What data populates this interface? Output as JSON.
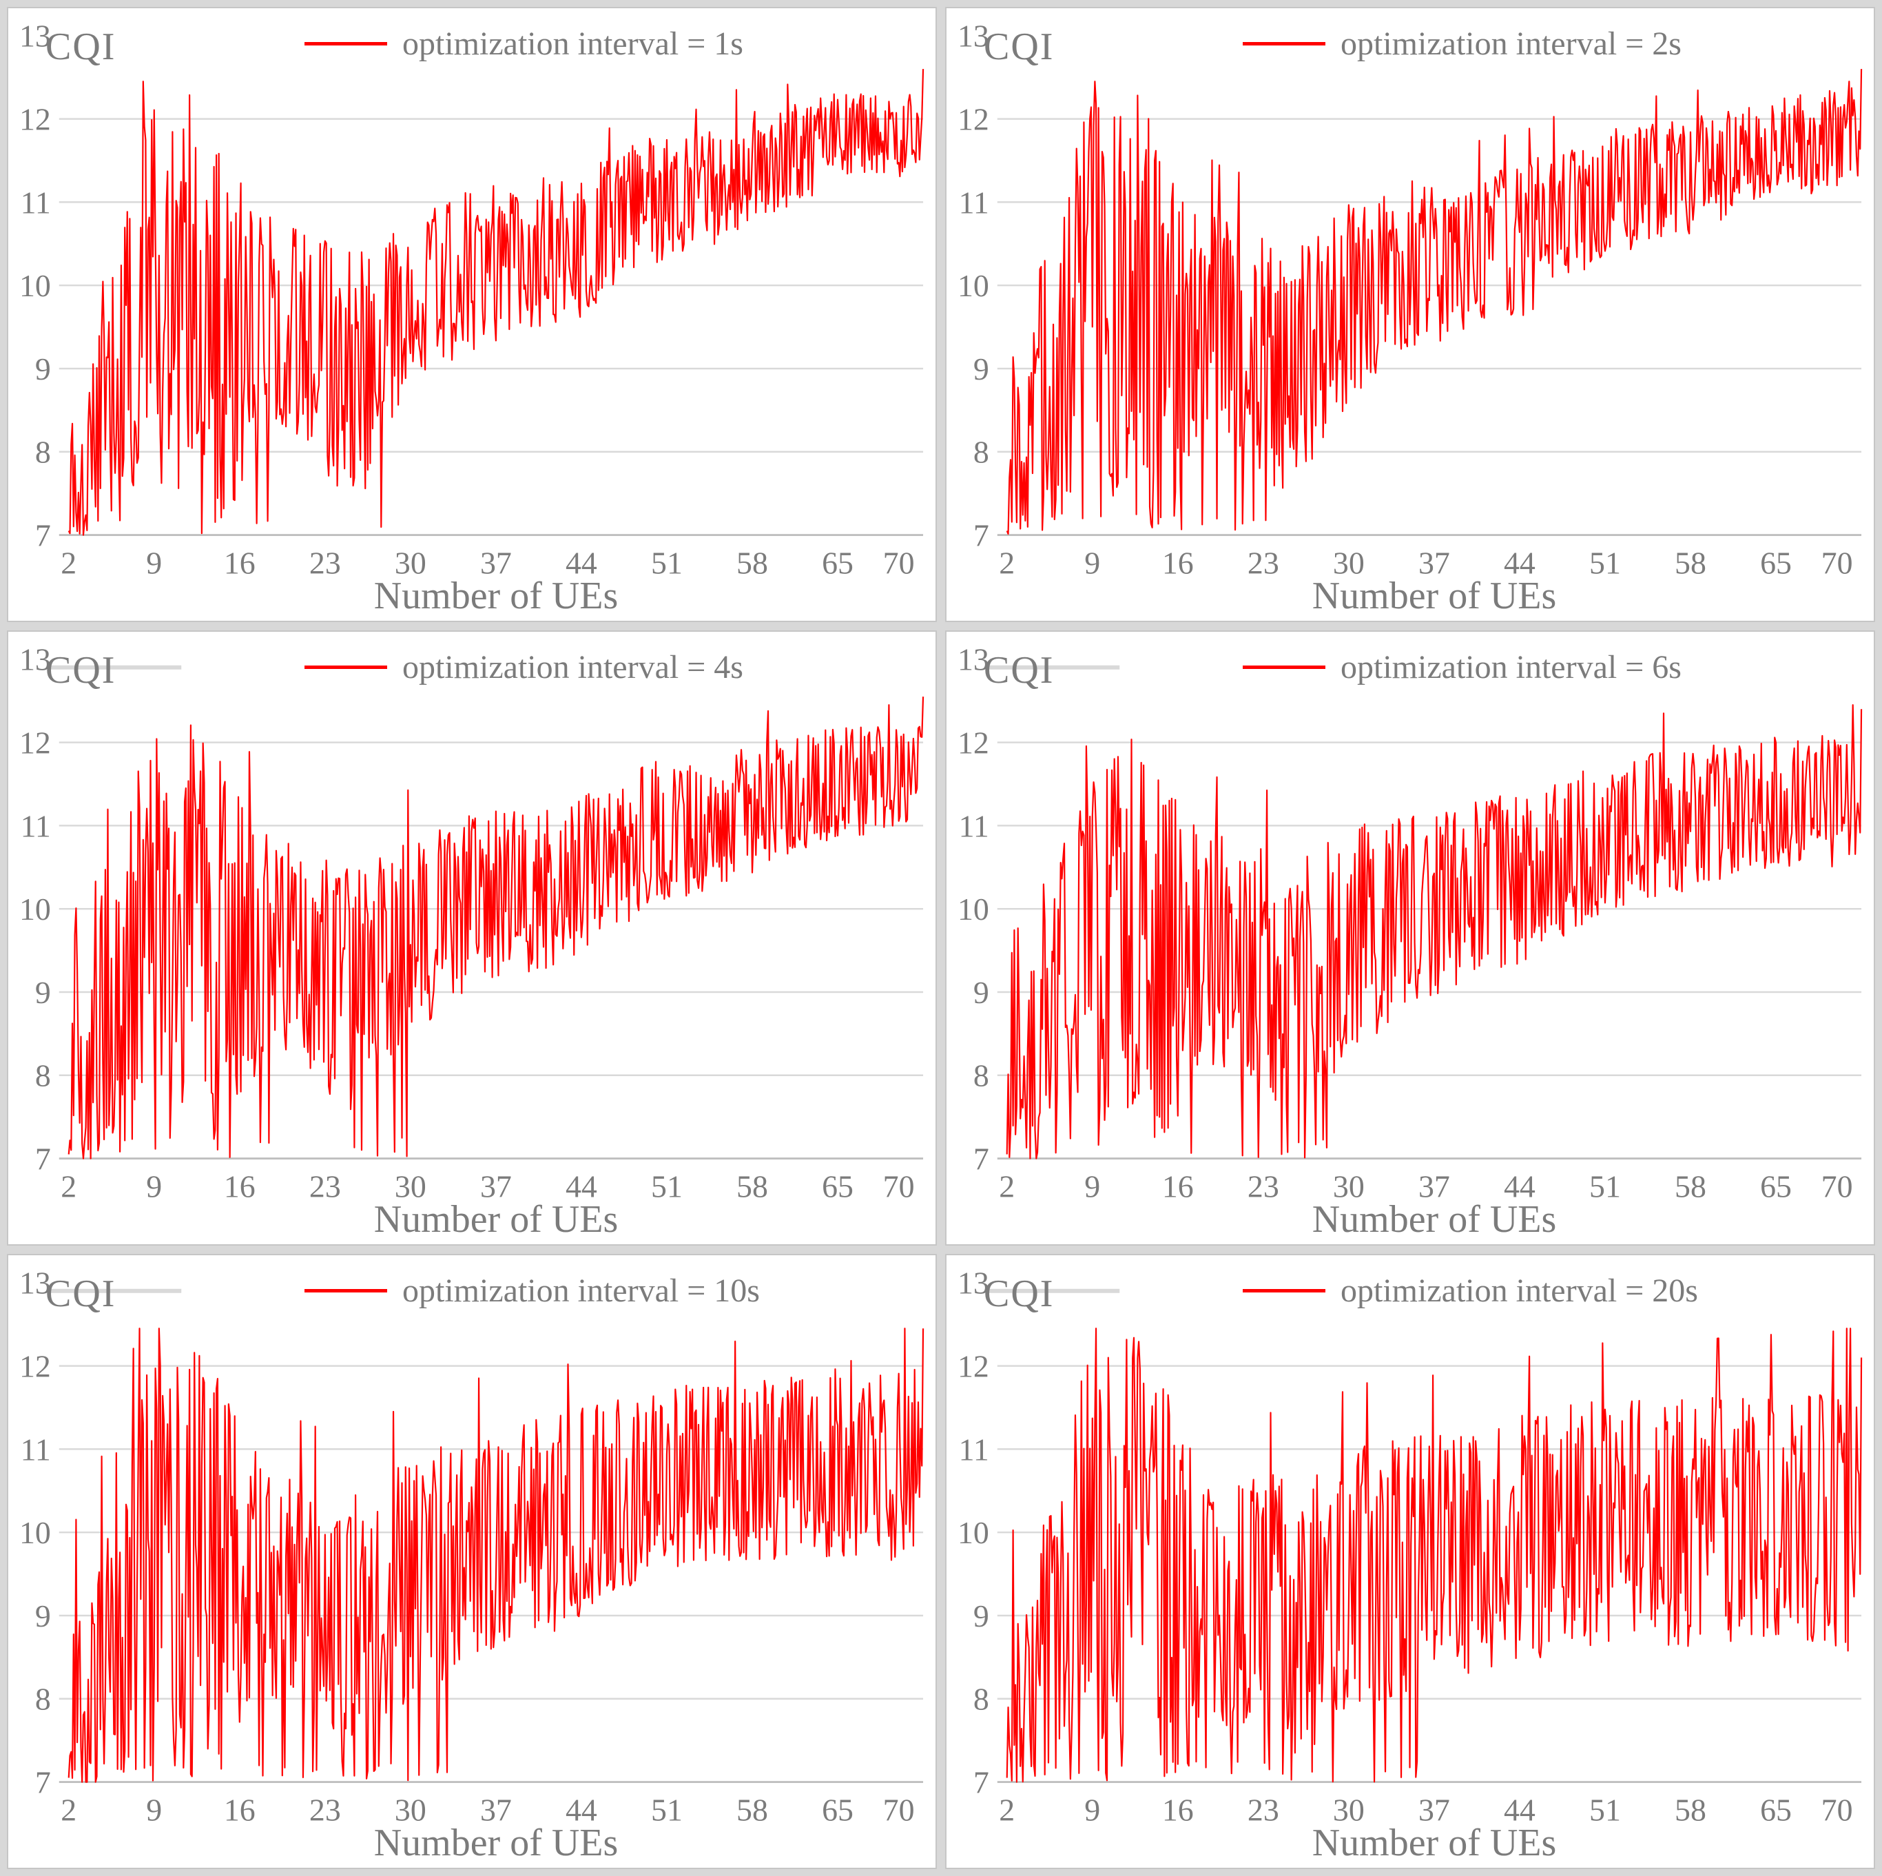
{
  "colors": {
    "series": "#ff0000",
    "grid": "#d9d9d9",
    "axis": "#bfbfbf",
    "text": "#7b7b7b",
    "frame": "#c6c6c6",
    "background": "#d8d8d8"
  },
  "chart_data": [
    {
      "type": "line",
      "legend": "optimization interval = 1s",
      "ylabel": "CQI",
      "xlabel": "Number of UEs",
      "x_ticks": [
        2,
        9,
        16,
        23,
        30,
        37,
        44,
        51,
        58,
        65,
        70
      ],
      "y_ticks": [
        7,
        8,
        9,
        10,
        11,
        12,
        13
      ],
      "x_range": [
        2,
        72
      ],
      "y_range": [
        7,
        13
      ],
      "seed": 101,
      "top_mark": false,
      "floor_spikes_until": 28,
      "floor_p": 0.05,
      "final_spike": 12.6,
      "envelope_format": "[number_of_UEs, mean_CQI, noise_half_band]",
      "envelope": [
        [
          2,
          7.2,
          0.3
        ],
        [
          2.6,
          8.8,
          1.8
        ],
        [
          3.2,
          7.4,
          0.5
        ],
        [
          4.2,
          8.3,
          1.4
        ],
        [
          5,
          8.8,
          1.7
        ],
        [
          6,
          8.6,
          1.6
        ],
        [
          7,
          9.2,
          1.9
        ],
        [
          8,
          9.9,
          2.0
        ],
        [
          9,
          10.2,
          2.1
        ],
        [
          10,
          9.7,
          2.4
        ],
        [
          11,
          9.8,
          2.3
        ],
        [
          12,
          10.0,
          2.4
        ],
        [
          13,
          9.9,
          2.5
        ],
        [
          14,
          9.6,
          2.4
        ],
        [
          15,
          9.5,
          2.3
        ],
        [
          16,
          9.4,
          1.9
        ],
        [
          18,
          9.7,
          1.2
        ],
        [
          20,
          9.5,
          1.3
        ],
        [
          22,
          9.4,
          1.3
        ],
        [
          24,
          9.0,
          1.5
        ],
        [
          26,
          8.9,
          1.5
        ],
        [
          28,
          9.4,
          1.2
        ],
        [
          30,
          9.8,
          1.1
        ],
        [
          32,
          10.0,
          1.0
        ],
        [
          34,
          10.1,
          1.0
        ],
        [
          36,
          10.2,
          1.0
        ],
        [
          38,
          10.3,
          0.9
        ],
        [
          40,
          10.4,
          0.9
        ],
        [
          42,
          10.4,
          0.9
        ],
        [
          44,
          10.5,
          0.9
        ],
        [
          46,
          10.7,
          0.8
        ],
        [
          48,
          10.9,
          0.8
        ],
        [
          50,
          11.0,
          0.8
        ],
        [
          52,
          11.1,
          0.7
        ],
        [
          54,
          11.1,
          0.7
        ],
        [
          56,
          11.3,
          0.7
        ],
        [
          58,
          11.4,
          0.7
        ],
        [
          60,
          11.5,
          0.6
        ],
        [
          62,
          11.6,
          0.6
        ],
        [
          64,
          11.7,
          0.6
        ],
        [
          66,
          11.8,
          0.5
        ],
        [
          68,
          11.8,
          0.5
        ],
        [
          70,
          11.8,
          0.5
        ],
        [
          72,
          11.9,
          0.5
        ]
      ]
    },
    {
      "type": "line",
      "legend": "optimization interval = 2s",
      "ylabel": "CQI",
      "xlabel": "Number of UEs",
      "x_ticks": [
        2,
        9,
        16,
        23,
        30,
        37,
        44,
        51,
        58,
        65,
        70
      ],
      "y_ticks": [
        7,
        8,
        9,
        10,
        11,
        12,
        13
      ],
      "x_range": [
        2,
        72
      ],
      "y_range": [
        7,
        13
      ],
      "seed": 202,
      "top_mark": false,
      "floor_spikes_until": 28,
      "floor_p": 0.05,
      "final_spike": 12.6,
      "envelope_format": "[number_of_UEs, mean_CQI, noise_half_band]",
      "envelope": [
        [
          2,
          7.2,
          0.3
        ],
        [
          2.6,
          8.8,
          1.8
        ],
        [
          3.2,
          7.4,
          0.5
        ],
        [
          4.2,
          8.3,
          1.4
        ],
        [
          5,
          8.8,
          1.7
        ],
        [
          6,
          8.6,
          1.6
        ],
        [
          7,
          9.2,
          1.9
        ],
        [
          8,
          9.9,
          2.0
        ],
        [
          9,
          10.2,
          2.1
        ],
        [
          10,
          9.7,
          2.4
        ],
        [
          11,
          9.8,
          2.3
        ],
        [
          12,
          10.0,
          2.4
        ],
        [
          13,
          9.9,
          2.5
        ],
        [
          14,
          9.6,
          2.4
        ],
        [
          15,
          9.5,
          2.3
        ],
        [
          16,
          9.4,
          1.9
        ],
        [
          18,
          9.7,
          1.3
        ],
        [
          20,
          9.5,
          1.3
        ],
        [
          22,
          9.3,
          1.4
        ],
        [
          24,
          9.0,
          1.5
        ],
        [
          26,
          9.0,
          1.5
        ],
        [
          28,
          9.4,
          1.3
        ],
        [
          30,
          9.8,
          1.2
        ],
        [
          32,
          10.0,
          1.1
        ],
        [
          34,
          10.2,
          1.0
        ],
        [
          36,
          10.3,
          1.0
        ],
        [
          38,
          10.3,
          1.0
        ],
        [
          40,
          10.4,
          0.9
        ],
        [
          42,
          10.5,
          0.9
        ],
        [
          44,
          10.5,
          0.9
        ],
        [
          46,
          10.7,
          0.9
        ],
        [
          48,
          10.9,
          0.8
        ],
        [
          50,
          11.0,
          0.8
        ],
        [
          52,
          11.1,
          0.8
        ],
        [
          54,
          11.2,
          0.7
        ],
        [
          56,
          11.3,
          0.7
        ],
        [
          58,
          11.3,
          0.7
        ],
        [
          60,
          11.4,
          0.7
        ],
        [
          62,
          11.5,
          0.6
        ],
        [
          64,
          11.6,
          0.6
        ],
        [
          66,
          11.7,
          0.6
        ],
        [
          68,
          11.7,
          0.6
        ],
        [
          70,
          11.8,
          0.6
        ],
        [
          72,
          11.8,
          0.6
        ]
      ]
    },
    {
      "type": "line",
      "legend": "optimization interval = 4s",
      "ylabel": "CQI",
      "xlabel": "Number of UEs",
      "x_ticks": [
        2,
        9,
        16,
        23,
        30,
        37,
        44,
        51,
        58,
        65,
        70
      ],
      "y_ticks": [
        7,
        8,
        9,
        10,
        11,
        12,
        13
      ],
      "x_range": [
        2,
        72
      ],
      "y_range": [
        7,
        13
      ],
      "seed": 404,
      "top_mark": true,
      "floor_spikes_until": 30,
      "floor_p": 0.06,
      "final_spike": 12.55,
      "envelope_format": "[number_of_UEs, mean_CQI, noise_half_band]",
      "envelope": [
        [
          2,
          7.2,
          0.3
        ],
        [
          2.6,
          8.8,
          1.8
        ],
        [
          3.2,
          7.4,
          0.5
        ],
        [
          4.2,
          8.3,
          1.4
        ],
        [
          5,
          8.8,
          1.7
        ],
        [
          6,
          8.6,
          1.6
        ],
        [
          7,
          9.2,
          1.9
        ],
        [
          8,
          9.9,
          2.0
        ],
        [
          9,
          10.2,
          2.1
        ],
        [
          10,
          9.7,
          2.4
        ],
        [
          11,
          9.8,
          2.3
        ],
        [
          12,
          10.0,
          2.4
        ],
        [
          13,
          9.9,
          2.5
        ],
        [
          14,
          9.6,
          2.4
        ],
        [
          15,
          9.5,
          2.3
        ],
        [
          16,
          9.4,
          1.9
        ],
        [
          18,
          9.6,
          1.3
        ],
        [
          22,
          9.3,
          1.4
        ],
        [
          26,
          9.0,
          1.5
        ],
        [
          30,
          9.7,
          1.2
        ],
        [
          34,
          10.0,
          1.1
        ],
        [
          38,
          10.2,
          1.0
        ],
        [
          42,
          10.3,
          1.0
        ],
        [
          46,
          10.6,
          0.9
        ],
        [
          50,
          10.9,
          0.9
        ],
        [
          54,
          11.0,
          0.8
        ],
        [
          58,
          11.2,
          0.8
        ],
        [
          62,
          11.4,
          0.7
        ],
        [
          66,
          11.5,
          0.7
        ],
        [
          70,
          11.6,
          0.6
        ],
        [
          72,
          11.6,
          0.6
        ]
      ]
    },
    {
      "type": "line",
      "legend": "optimization interval = 6s",
      "ylabel": "CQI",
      "xlabel": "Number of UEs",
      "x_ticks": [
        2,
        9,
        16,
        23,
        30,
        37,
        44,
        51,
        58,
        65,
        70
      ],
      "y_ticks": [
        7,
        8,
        9,
        10,
        11,
        12,
        13
      ],
      "x_range": [
        2,
        72
      ],
      "y_range": [
        7,
        13
      ],
      "seed": 606,
      "top_mark": true,
      "floor_spikes_until": 30,
      "floor_p": 0.06,
      "final_spike": 12.4,
      "envelope_format": "[number_of_UEs, mean_CQI, noise_half_band]",
      "envelope": [
        [
          2,
          7.2,
          0.3
        ],
        [
          2.6,
          8.8,
          1.8
        ],
        [
          3.2,
          7.4,
          0.5
        ],
        [
          4.2,
          8.3,
          1.4
        ],
        [
          5,
          8.8,
          1.7
        ],
        [
          6,
          8.6,
          1.6
        ],
        [
          7,
          9.2,
          1.9
        ],
        [
          8,
          9.9,
          2.0
        ],
        [
          9,
          10.2,
          2.1
        ],
        [
          10,
          9.7,
          2.4
        ],
        [
          11,
          9.8,
          2.3
        ],
        [
          12,
          10.0,
          2.4
        ],
        [
          13,
          9.9,
          2.5
        ],
        [
          14,
          9.6,
          2.4
        ],
        [
          15,
          9.5,
          2.3
        ],
        [
          16,
          9.4,
          1.9
        ],
        [
          18,
          9.6,
          1.4
        ],
        [
          22,
          9.3,
          1.5
        ],
        [
          26,
          9.0,
          1.6
        ],
        [
          30,
          9.6,
          1.4
        ],
        [
          34,
          9.9,
          1.2
        ],
        [
          38,
          10.1,
          1.1
        ],
        [
          42,
          10.3,
          1.1
        ],
        [
          46,
          10.5,
          1.0
        ],
        [
          50,
          10.8,
          0.9
        ],
        [
          54,
          11.0,
          0.9
        ],
        [
          58,
          11.1,
          0.9
        ],
        [
          62,
          11.2,
          0.8
        ],
        [
          66,
          11.3,
          0.8
        ],
        [
          70,
          11.3,
          0.8
        ],
        [
          72,
          11.4,
          0.8
        ]
      ]
    },
    {
      "type": "line",
      "legend": "optimization interval = 10s",
      "ylabel": "CQI",
      "xlabel": "Number of UEs",
      "x_ticks": [
        2,
        9,
        16,
        23,
        30,
        37,
        44,
        51,
        58,
        65,
        70
      ],
      "y_ticks": [
        7,
        8,
        9,
        10,
        11,
        12,
        13
      ],
      "x_range": [
        2,
        72
      ],
      "y_range": [
        7,
        13
      ],
      "seed": 1010,
      "top_mark": true,
      "floor_spikes_until": 34,
      "floor_p": 0.07,
      "final_spike": 12.45,
      "envelope_format": "[number_of_UEs, mean_CQI, noise_half_band]",
      "envelope": [
        [
          2,
          7.2,
          0.3
        ],
        [
          2.6,
          8.8,
          1.8
        ],
        [
          3.2,
          7.4,
          0.5
        ],
        [
          4.2,
          8.3,
          1.4
        ],
        [
          5,
          8.8,
          1.7
        ],
        [
          6,
          8.6,
          1.6
        ],
        [
          7,
          9.2,
          1.9
        ],
        [
          8,
          9.9,
          2.0
        ],
        [
          9,
          10.2,
          2.1
        ],
        [
          10,
          9.7,
          2.4
        ],
        [
          11,
          9.8,
          2.3
        ],
        [
          12,
          10.0,
          2.4
        ],
        [
          13,
          9.9,
          2.5
        ],
        [
          14,
          9.6,
          2.4
        ],
        [
          15,
          9.5,
          2.3
        ],
        [
          16,
          9.4,
          1.9
        ],
        [
          18,
          9.5,
          1.4
        ],
        [
          22,
          9.1,
          1.5
        ],
        [
          26,
          8.9,
          1.6
        ],
        [
          30,
          9.4,
          1.5
        ],
        [
          34,
          9.8,
          1.4
        ],
        [
          38,
          10.0,
          1.3
        ],
        [
          42,
          10.1,
          1.3
        ],
        [
          46,
          10.4,
          1.2
        ],
        [
          50,
          10.6,
          1.1
        ],
        [
          54,
          10.7,
          1.1
        ],
        [
          58,
          10.7,
          1.1
        ],
        [
          62,
          10.8,
          1.1
        ],
        [
          66,
          10.9,
          1.2
        ],
        [
          70,
          10.8,
          1.2
        ],
        [
          72,
          10.9,
          1.2
        ]
      ]
    },
    {
      "type": "line",
      "legend": "optimization interval = 20s",
      "ylabel": "CQI",
      "xlabel": "Number of UEs",
      "x_ticks": [
        2,
        9,
        16,
        23,
        30,
        37,
        44,
        51,
        58,
        65,
        70
      ],
      "y_ticks": [
        7,
        8,
        9,
        10,
        11,
        12,
        13
      ],
      "x_range": [
        2,
        72
      ],
      "y_range": [
        7,
        13
      ],
      "seed": 2020,
      "top_mark": true,
      "floor_spikes_until": 38,
      "floor_p": 0.09,
      "final_spike": 12.1,
      "envelope_format": "[number_of_UEs, mean_CQI, noise_half_band]",
      "envelope": [
        [
          2,
          7.2,
          0.3
        ],
        [
          2.6,
          8.8,
          1.8
        ],
        [
          3.2,
          7.4,
          0.5
        ],
        [
          4.2,
          8.3,
          1.4
        ],
        [
          5,
          8.8,
          1.7
        ],
        [
          6,
          8.6,
          1.6
        ],
        [
          7,
          9.2,
          1.9
        ],
        [
          8,
          9.9,
          2.0
        ],
        [
          9,
          10.2,
          2.1
        ],
        [
          10,
          9.7,
          2.4
        ],
        [
          11,
          9.8,
          2.3
        ],
        [
          12,
          10.0,
          2.4
        ],
        [
          13,
          9.9,
          2.5
        ],
        [
          14,
          9.6,
          2.4
        ],
        [
          15,
          9.5,
          2.3
        ],
        [
          16,
          9.4,
          1.9
        ],
        [
          18,
          9.3,
          1.5
        ],
        [
          22,
          9.1,
          1.6
        ],
        [
          26,
          9.0,
          1.7
        ],
        [
          30,
          9.4,
          1.6
        ],
        [
          34,
          9.6,
          1.6
        ],
        [
          38,
          9.7,
          1.5
        ],
        [
          42,
          9.8,
          1.5
        ],
        [
          46,
          10.0,
          1.5
        ],
        [
          50,
          10.1,
          1.5
        ],
        [
          54,
          10.1,
          1.5
        ],
        [
          58,
          10.1,
          1.5
        ],
        [
          62,
          10.2,
          1.5
        ],
        [
          66,
          10.2,
          1.5
        ],
        [
          70,
          10.1,
          1.6
        ],
        [
          72,
          10.2,
          1.6
        ]
      ]
    }
  ]
}
